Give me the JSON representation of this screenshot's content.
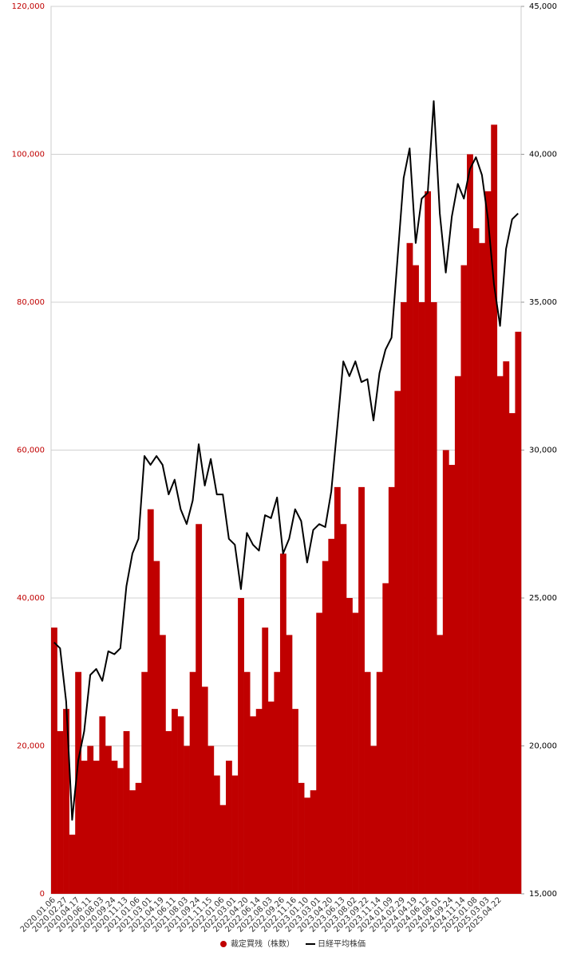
{
  "chart_data": {
    "type": "bar-line",
    "categories": [
      "2020.01.06",
      null,
      "2020.02.27",
      null,
      "2020.04.17",
      null,
      "2020.06.11",
      null,
      "2020.08.03",
      null,
      "2020.09.24",
      null,
      "2020.11.13",
      null,
      "2021.01.06",
      null,
      "2021.03.01",
      null,
      "2021.04.19",
      null,
      "2021.06.11",
      null,
      "2021.08.03",
      null,
      "2021.09.24",
      null,
      "2021.11.15",
      null,
      "2022.01.06",
      null,
      "2022.03.01",
      null,
      "2022.04.20",
      null,
      "2022.06.14",
      null,
      "2022.08.03",
      null,
      "2022.09.26",
      null,
      "2022.11.16",
      null,
      "2023.01.10",
      null,
      "2023.03.01",
      null,
      "2023.04.20",
      null,
      "2023.06.13",
      null,
      "2023.08.02",
      null,
      "2023.09.22",
      null,
      "2023.11.14",
      null,
      "2024.01.09",
      null,
      "2024.02.29",
      null,
      "2024.04.19",
      null,
      "2024.06.12",
      null,
      "2024.08.01",
      null,
      "2024.09.24",
      null,
      "2024.11.14",
      null,
      "2025.01.08",
      null,
      "2025.03.03",
      null,
      "2025.04.22",
      null,
      null,
      null
    ],
    "series": [
      {
        "name": "裁定買残（株数）",
        "color": "#c00000",
        "kind": "bar",
        "values": [
          36000,
          22000,
          25000,
          8000,
          30000,
          18000,
          20000,
          18000,
          24000,
          20000,
          18000,
          17000,
          22000,
          14000,
          15000,
          30000,
          52000,
          45000,
          35000,
          22000,
          25000,
          24000,
          20000,
          30000,
          50000,
          28000,
          20000,
          16000,
          12000,
          18000,
          16000,
          40000,
          30000,
          24000,
          25000,
          36000,
          26000,
          30000,
          46000,
          35000,
          25000,
          15000,
          13000,
          14000,
          38000,
          45000,
          48000,
          55000,
          50000,
          40000,
          38000,
          55000,
          30000,
          20000,
          30000,
          42000,
          55000,
          68000,
          80000,
          88000,
          85000,
          80000,
          95000,
          80000,
          35000,
          60000,
          58000,
          70000,
          85000,
          100000,
          90000,
          88000,
          95000,
          104000,
          70000,
          72000,
          65000,
          76000
        ]
      },
      {
        "name": "日経平均株価",
        "color": "#000000",
        "kind": "line",
        "axis": "y2",
        "values": [
          23500,
          23300,
          21500,
          17500,
          19500,
          20500,
          22400,
          22600,
          22200,
          23200,
          23100,
          23300,
          25400,
          26500,
          27000,
          29800,
          29500,
          29800,
          29500,
          28500,
          29000,
          28000,
          27500,
          28300,
          30200,
          28800,
          29700,
          28500,
          28500,
          27000,
          26800,
          25300,
          27200,
          26800,
          26600,
          27800,
          27700,
          28400,
          26500,
          27000,
          28000,
          27600,
          26200,
          27300,
          27500,
          27400,
          28600,
          30800,
          33000,
          32500,
          33000,
          32300,
          32400,
          31000,
          32600,
          33400,
          33800,
          36500,
          39200,
          40200,
          37000,
          38500,
          38700,
          41800,
          38000,
          36000,
          37900,
          39000,
          38500,
          39500,
          39900,
          39300,
          37800,
          35600,
          34200,
          36800,
          37800,
          38000
        ]
      }
    ],
    "ylim": [
      0,
      120000
    ],
    "yticks": [
      0,
      {
        "value": 20000,
        "label": "20,000"
      },
      {
        "value": 40000,
        "label": "40,000"
      },
      {
        "value": 60000,
        "label": "60,000"
      },
      {
        "value": 80000,
        "label": "80,000"
      },
      {
        "value": 100000,
        "label": "100,000"
      },
      {
        "value": 120000,
        "label": "120,000"
      }
    ],
    "y2lim": [
      15000,
      45000
    ],
    "y2ticks": [
      {
        "value": 15000,
        "label": "15,000"
      },
      {
        "value": 20000,
        "label": "20,000"
      },
      {
        "value": 25000,
        "label": "25,000"
      },
      {
        "value": 30000,
        "label": "30,000"
      },
      {
        "value": 35000,
        "label": "35,000"
      },
      {
        "value": 40000,
        "label": "40,000"
      },
      {
        "value": 45000,
        "label": "45,000"
      }
    ],
    "grid": true,
    "legend": "bottom"
  }
}
